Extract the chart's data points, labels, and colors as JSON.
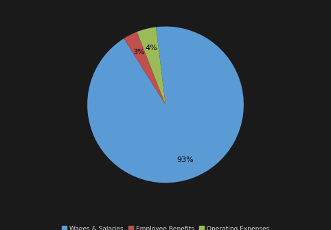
{
  "labels": [
    "Wages & Salaries",
    "Employee Benefits",
    "Operating Expenses"
  ],
  "values": [
    93,
    3,
    4
  ],
  "colors": [
    "#5b9bd5",
    "#c0504d",
    "#9bbb59"
  ],
  "background_color": "#1a1a1a",
  "text_color": "#000000",
  "legend_text_color": "#d0d0d0",
  "legend_fontsize": 6.5,
  "figsize": [
    4.82,
    3.35
  ],
  "dpi": 100,
  "startangle": 97,
  "pctdistance": 0.75,
  "counterclock": false
}
